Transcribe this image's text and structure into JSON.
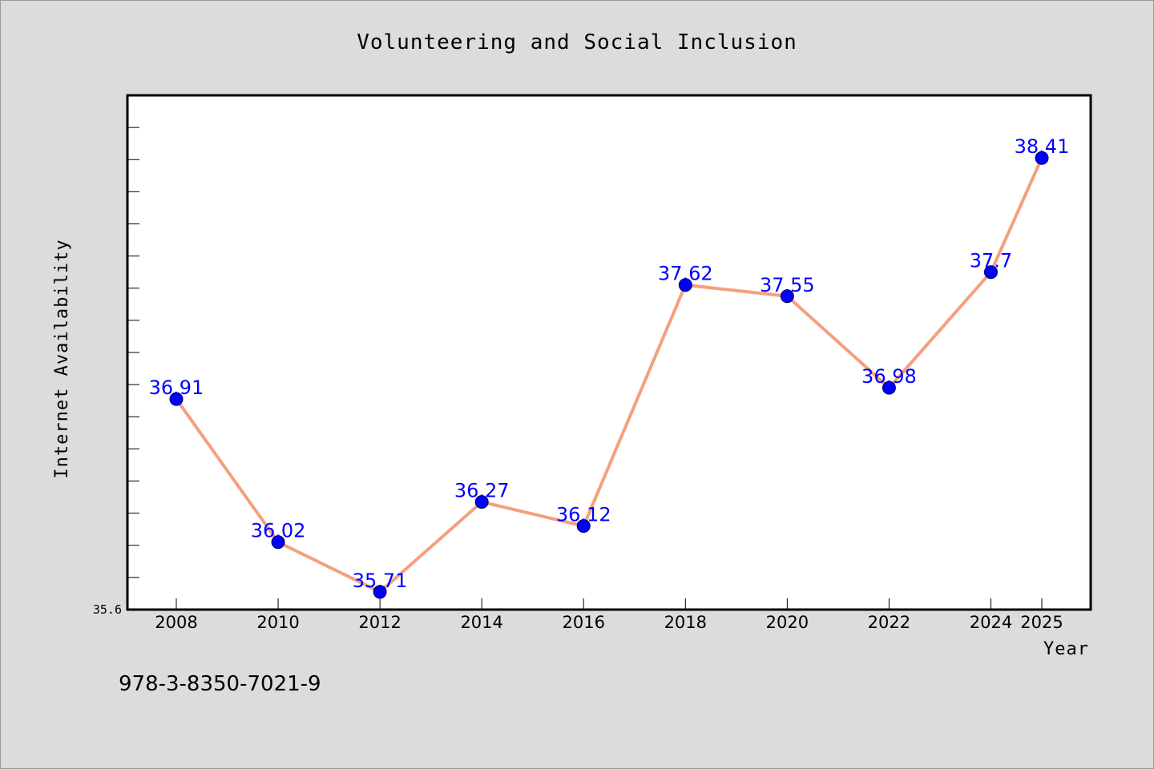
{
  "chart_data": {
    "type": "line",
    "title": "Volunteering and Social Inclusion",
    "xlabel": "Year",
    "ylabel": "Internet Availability",
    "categories": [
      "2008",
      "2010",
      "2012",
      "2014",
      "2016",
      "2018",
      "2020",
      "2022",
      "2024",
      "2025"
    ],
    "series": [
      {
        "values": [
          36.91,
          36.02,
          35.71,
          36.27,
          36.12,
          37.62,
          37.55,
          36.98,
          37.7,
          38.41
        ]
      }
    ],
    "data_labels": [
      "36.91",
      "36.02",
      "35.71",
      "36.27",
      "36.12",
      "37.62",
      "37.55",
      "36.98",
      "37.7",
      "38.41"
    ],
    "ylim": [
      35.6,
      38.8
    ],
    "ytick_label": "35.6",
    "grid": false,
    "line_color": "#f4a07e",
    "marker_color": "#0000ff",
    "label_color": "#0000ff"
  },
  "footer": {
    "isbn": "978-3-8350-7021-9"
  }
}
